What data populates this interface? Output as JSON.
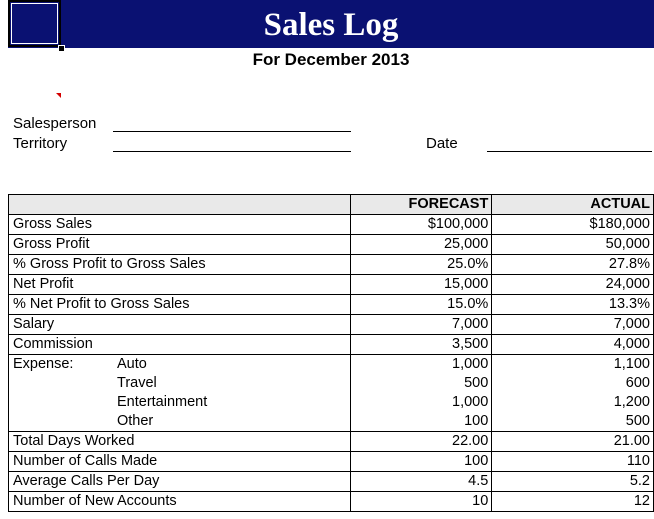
{
  "title": "Sales Log",
  "subtitle": "For December 2013",
  "fields": {
    "salesperson_label": "Salesperson",
    "territory_label": "Territory",
    "date_label": "Date"
  },
  "table": {
    "headers": [
      "",
      "FORECAST",
      "ACTUAL"
    ],
    "rows": [
      {
        "label": "Gross Sales",
        "forecast": "$100,000",
        "actual": "$180,000"
      },
      {
        "label": "Gross Profit",
        "forecast": "25,000",
        "actual": "50,000"
      },
      {
        "label": "% Gross Profit to Gross Sales",
        "forecast": "25.0%",
        "actual": "27.8%"
      },
      {
        "label": "Net Profit",
        "forecast": "15,000",
        "actual": "24,000"
      },
      {
        "label": "% Net Profit to Gross Sales",
        "forecast": "15.0%",
        "actual": "13.3%"
      },
      {
        "label": "Salary",
        "forecast": "7,000",
        "actual": "7,000"
      },
      {
        "label": "Commission",
        "forecast": "3,500",
        "actual": "4,000"
      },
      {
        "group": "Expense:",
        "label": "Auto",
        "forecast": "1,000",
        "actual": "1,100"
      },
      {
        "label": "Travel",
        "forecast": "500",
        "actual": "600"
      },
      {
        "label": "Entertainment",
        "forecast": "1,000",
        "actual": "1,200"
      },
      {
        "label": "Other",
        "forecast": "100",
        "actual": "500"
      },
      {
        "label": "Total Days Worked",
        "forecast": "22.00",
        "actual": "21.00"
      },
      {
        "label": "Number of Calls Made",
        "forecast": "100",
        "actual": "110"
      },
      {
        "label": "Average Calls Per Day",
        "forecast": "4.5",
        "actual": "5.2"
      },
      {
        "label": "Number of New Accounts",
        "forecast": "10",
        "actual": "12"
      }
    ]
  },
  "colors": {
    "banner": "#0a1172",
    "header_fill": "#e9e9e9",
    "comment_indicator": "#d40000"
  }
}
